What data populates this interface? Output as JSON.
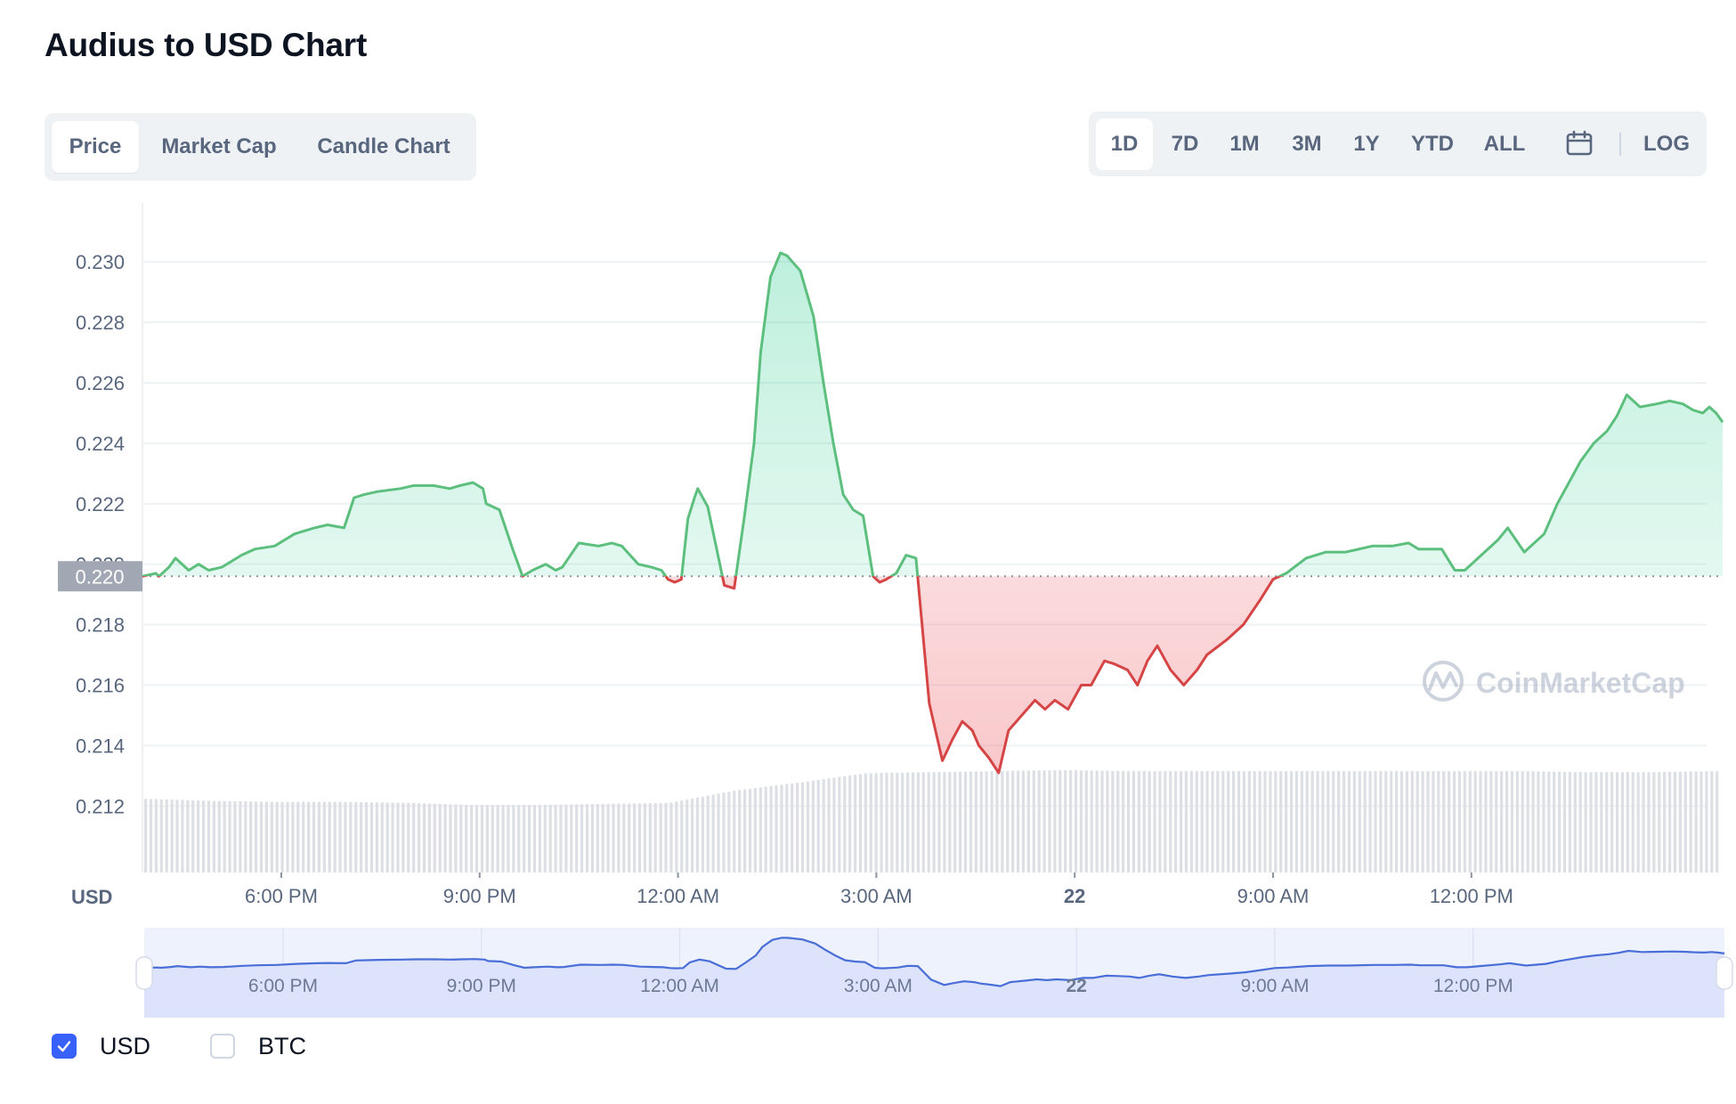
{
  "page": {
    "title": "Audius to USD Chart"
  },
  "tabs": [
    {
      "label": "Price",
      "active": true
    },
    {
      "label": "Market Cap",
      "active": false
    },
    {
      "label": "Candle Chart",
      "active": false
    }
  ],
  "ranges": [
    {
      "label": "1D",
      "active": true
    },
    {
      "label": "7D",
      "active": false
    },
    {
      "label": "1M",
      "active": false
    },
    {
      "label": "3M",
      "active": false
    },
    {
      "label": "1Y",
      "active": false
    },
    {
      "label": "YTD",
      "active": false
    },
    {
      "label": "ALL",
      "active": false
    }
  ],
  "calendar_icon": "calendar-icon",
  "log_label": "LOG",
  "watermark": "CoinMarketCap",
  "legend": [
    {
      "label": "USD",
      "checked": true
    },
    {
      "label": "BTC",
      "checked": false
    }
  ],
  "colors": {
    "up": "#16c784",
    "up_line": "#5cbf7d",
    "down_line": "#d64545",
    "accent": "#3861fb",
    "volume": "#dcdfe4",
    "navigator_line": "#4a6ed8"
  },
  "chart_data": {
    "type": "area",
    "currency_label": "USD",
    "baseline": 0.2196,
    "baseline_label": "0.220",
    "ylim": [
      0.2098,
      0.2313
    ],
    "y_ticks": [
      "0.230",
      "0.228",
      "0.226",
      "0.224",
      "0.222",
      "0.220",
      "0.218",
      "0.216",
      "0.214",
      "0.212"
    ],
    "y_tick_values": [
      0.23,
      0.228,
      0.226,
      0.224,
      0.222,
      0.22,
      0.218,
      0.216,
      0.214,
      0.212
    ],
    "x_ticks": [
      "6:00 PM",
      "9:00 PM",
      "12:00 AM",
      "3:00 AM",
      "22",
      "9:00 AM",
      "12:00 PM"
    ],
    "x_tick_hours": [
      2,
      5,
      8,
      11,
      14,
      17,
      20
    ],
    "x_range_hours": [
      -0.1,
      23.8
    ],
    "grid": "horizontal",
    "series": [
      {
        "x": [
          -0.1,
          0.1,
          0.15,
          0.3,
          0.4,
          0.6,
          0.75,
          0.9,
          1.1,
          1.4,
          1.6,
          1.9,
          2.2,
          2.5,
          2.7,
          2.95,
          3.1,
          3.25,
          3.45,
          3.8,
          4.0,
          4.3,
          4.55,
          4.7,
          4.9,
          5.05,
          5.1,
          5.3,
          5.5,
          5.65,
          5.8,
          6.0,
          6.15,
          6.25,
          6.5,
          6.8,
          7.0,
          7.15,
          7.4,
          7.6,
          7.75,
          7.85,
          7.95,
          8.05,
          8.15,
          8.25,
          8.3,
          8.45,
          8.7,
          8.85,
          9.0,
          9.15,
          9.25,
          9.4,
          9.55,
          9.65,
          9.85,
          10.05,
          10.2,
          10.35,
          10.5,
          10.65,
          10.8,
          10.95,
          11.05,
          11.15,
          11.3,
          11.45,
          11.6,
          11.8,
          12.0,
          12.15,
          12.3,
          12.45,
          12.55,
          12.7,
          12.85,
          13.0,
          13.2,
          13.4,
          13.55,
          13.7,
          13.9,
          14.1,
          14.25,
          14.45,
          14.6,
          14.8,
          14.95,
          15.1,
          15.25,
          15.45,
          15.65,
          15.85,
          16.0,
          16.3,
          16.55,
          16.8,
          17.0,
          17.2,
          17.5,
          17.8,
          18.1,
          18.5,
          18.8,
          19.05,
          19.2,
          19.35,
          19.55,
          19.75,
          19.9,
          20.1,
          20.4,
          20.55,
          20.8,
          21.1,
          21.3,
          21.5,
          21.65,
          21.85,
          22.05,
          22.2,
          22.35,
          22.55,
          22.8,
          23.0,
          23.2,
          23.35,
          23.5,
          23.6,
          23.7,
          23.8
        ],
        "y": [
          0.2196,
          0.2197,
          0.2196,
          0.2199,
          0.2202,
          0.2198,
          0.22,
          0.2198,
          0.2199,
          0.2203,
          0.2205,
          0.2206,
          0.221,
          0.2212,
          0.2213,
          0.2212,
          0.2222,
          0.2223,
          0.2224,
          0.2225,
          0.2226,
          0.2226,
          0.2225,
          0.2226,
          0.2227,
          0.2225,
          0.222,
          0.2218,
          0.2205,
          0.2196,
          0.2198,
          0.22,
          0.2198,
          0.2199,
          0.2207,
          0.2206,
          0.2207,
          0.2206,
          0.22,
          0.2199,
          0.2198,
          0.2195,
          0.2194,
          0.2195,
          0.2215,
          0.2222,
          0.2225,
          0.2219,
          0.2193,
          0.2192,
          0.2215,
          0.224,
          0.227,
          0.2295,
          0.2303,
          0.2302,
          0.2297,
          0.2282,
          0.226,
          0.224,
          0.2223,
          0.2218,
          0.2216,
          0.2196,
          0.2194,
          0.2195,
          0.2197,
          0.2203,
          0.2202,
          0.2154,
          0.2135,
          0.2142,
          0.2148,
          0.2145,
          0.214,
          0.2136,
          0.2131,
          0.2145,
          0.215,
          0.2155,
          0.2152,
          0.2155,
          0.2152,
          0.216,
          0.216,
          0.2168,
          0.2167,
          0.2165,
          0.216,
          0.2168,
          0.2173,
          0.2165,
          0.216,
          0.2165,
          0.217,
          0.2175,
          0.218,
          0.2188,
          0.2195,
          0.2197,
          0.2202,
          0.2204,
          0.2204,
          0.2206,
          0.2206,
          0.2207,
          0.2205,
          0.2205,
          0.2205,
          0.2198,
          0.2198,
          0.2202,
          0.2208,
          0.2212,
          0.2204,
          0.221,
          0.222,
          0.2228,
          0.2234,
          0.224,
          0.2244,
          0.2249,
          0.2256,
          0.2252,
          0.2253,
          0.2254,
          0.2253,
          0.2251,
          0.225,
          0.2252,
          0.225,
          0.2247
        ]
      }
    ],
    "volume_relative": [
      0.72,
      0.7,
      0.69,
      0.69,
      0.68,
      0.66,
      0.66,
      0.67,
      0.68,
      0.8,
      0.88,
      0.97,
      0.98,
      0.99,
      1.0,
      0.99,
      0.99,
      0.99,
      0.99,
      0.99,
      0.99,
      0.99,
      0.98,
      0.98,
      0.99
    ],
    "navigator": {
      "x_ticks": [
        "6:00 PM",
        "9:00 PM",
        "12:00 AM",
        "3:00 AM",
        "22",
        "9:00 AM",
        "12:00 PM"
      ]
    }
  }
}
